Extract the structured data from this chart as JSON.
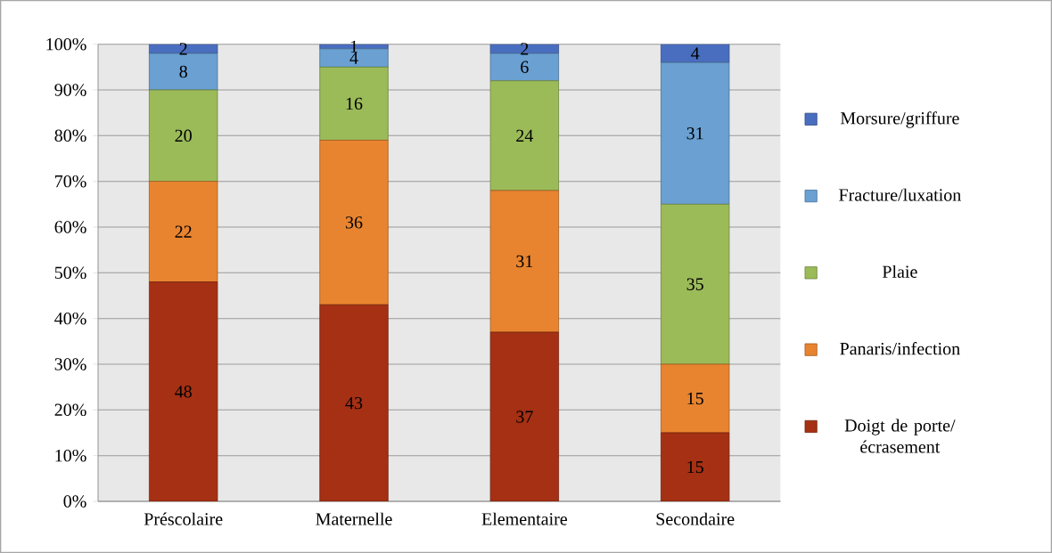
{
  "chart_data": {
    "type": "bar",
    "stacked": true,
    "data_labels": true,
    "grid": "y",
    "legend": "right",
    "categories": [
      "Préscolaire",
      "Maternelle",
      "Elementaire",
      "Secondaire"
    ],
    "ylim": [
      0,
      100
    ],
    "yticks": [
      {
        "value": 0,
        "label": "0%"
      },
      {
        "value": 10,
        "label": "10%"
      },
      {
        "value": 20,
        "label": "20%"
      },
      {
        "value": 30,
        "label": "30%"
      },
      {
        "value": 40,
        "label": "40%"
      },
      {
        "value": 50,
        "label": "50%"
      },
      {
        "value": 60,
        "label": "60%"
      },
      {
        "value": 70,
        "label": "70%"
      },
      {
        "value": 80,
        "label": "80%"
      },
      {
        "value": 90,
        "label": "90%"
      },
      {
        "value": 100,
        "label": "100%"
      }
    ],
    "series": [
      {
        "name": "Doigt de porte/ écrasement",
        "color": "#a53014",
        "values": [
          48,
          43,
          37,
          15
        ]
      },
      {
        "name": "Panaris/infection",
        "color": "#e8842f",
        "values": [
          22,
          36,
          31,
          15
        ]
      },
      {
        "name": "Plaie",
        "color": "#9bbb59",
        "values": [
          20,
          16,
          24,
          35
        ]
      },
      {
        "name": "Fracture/luxation",
        "color": "#6aa0d2",
        "values": [
          8,
          4,
          6,
          31
        ]
      },
      {
        "name": "Morsure/griffure",
        "color": "#4a6ebf",
        "values": [
          2,
          1,
          2,
          4
        ]
      }
    ]
  }
}
